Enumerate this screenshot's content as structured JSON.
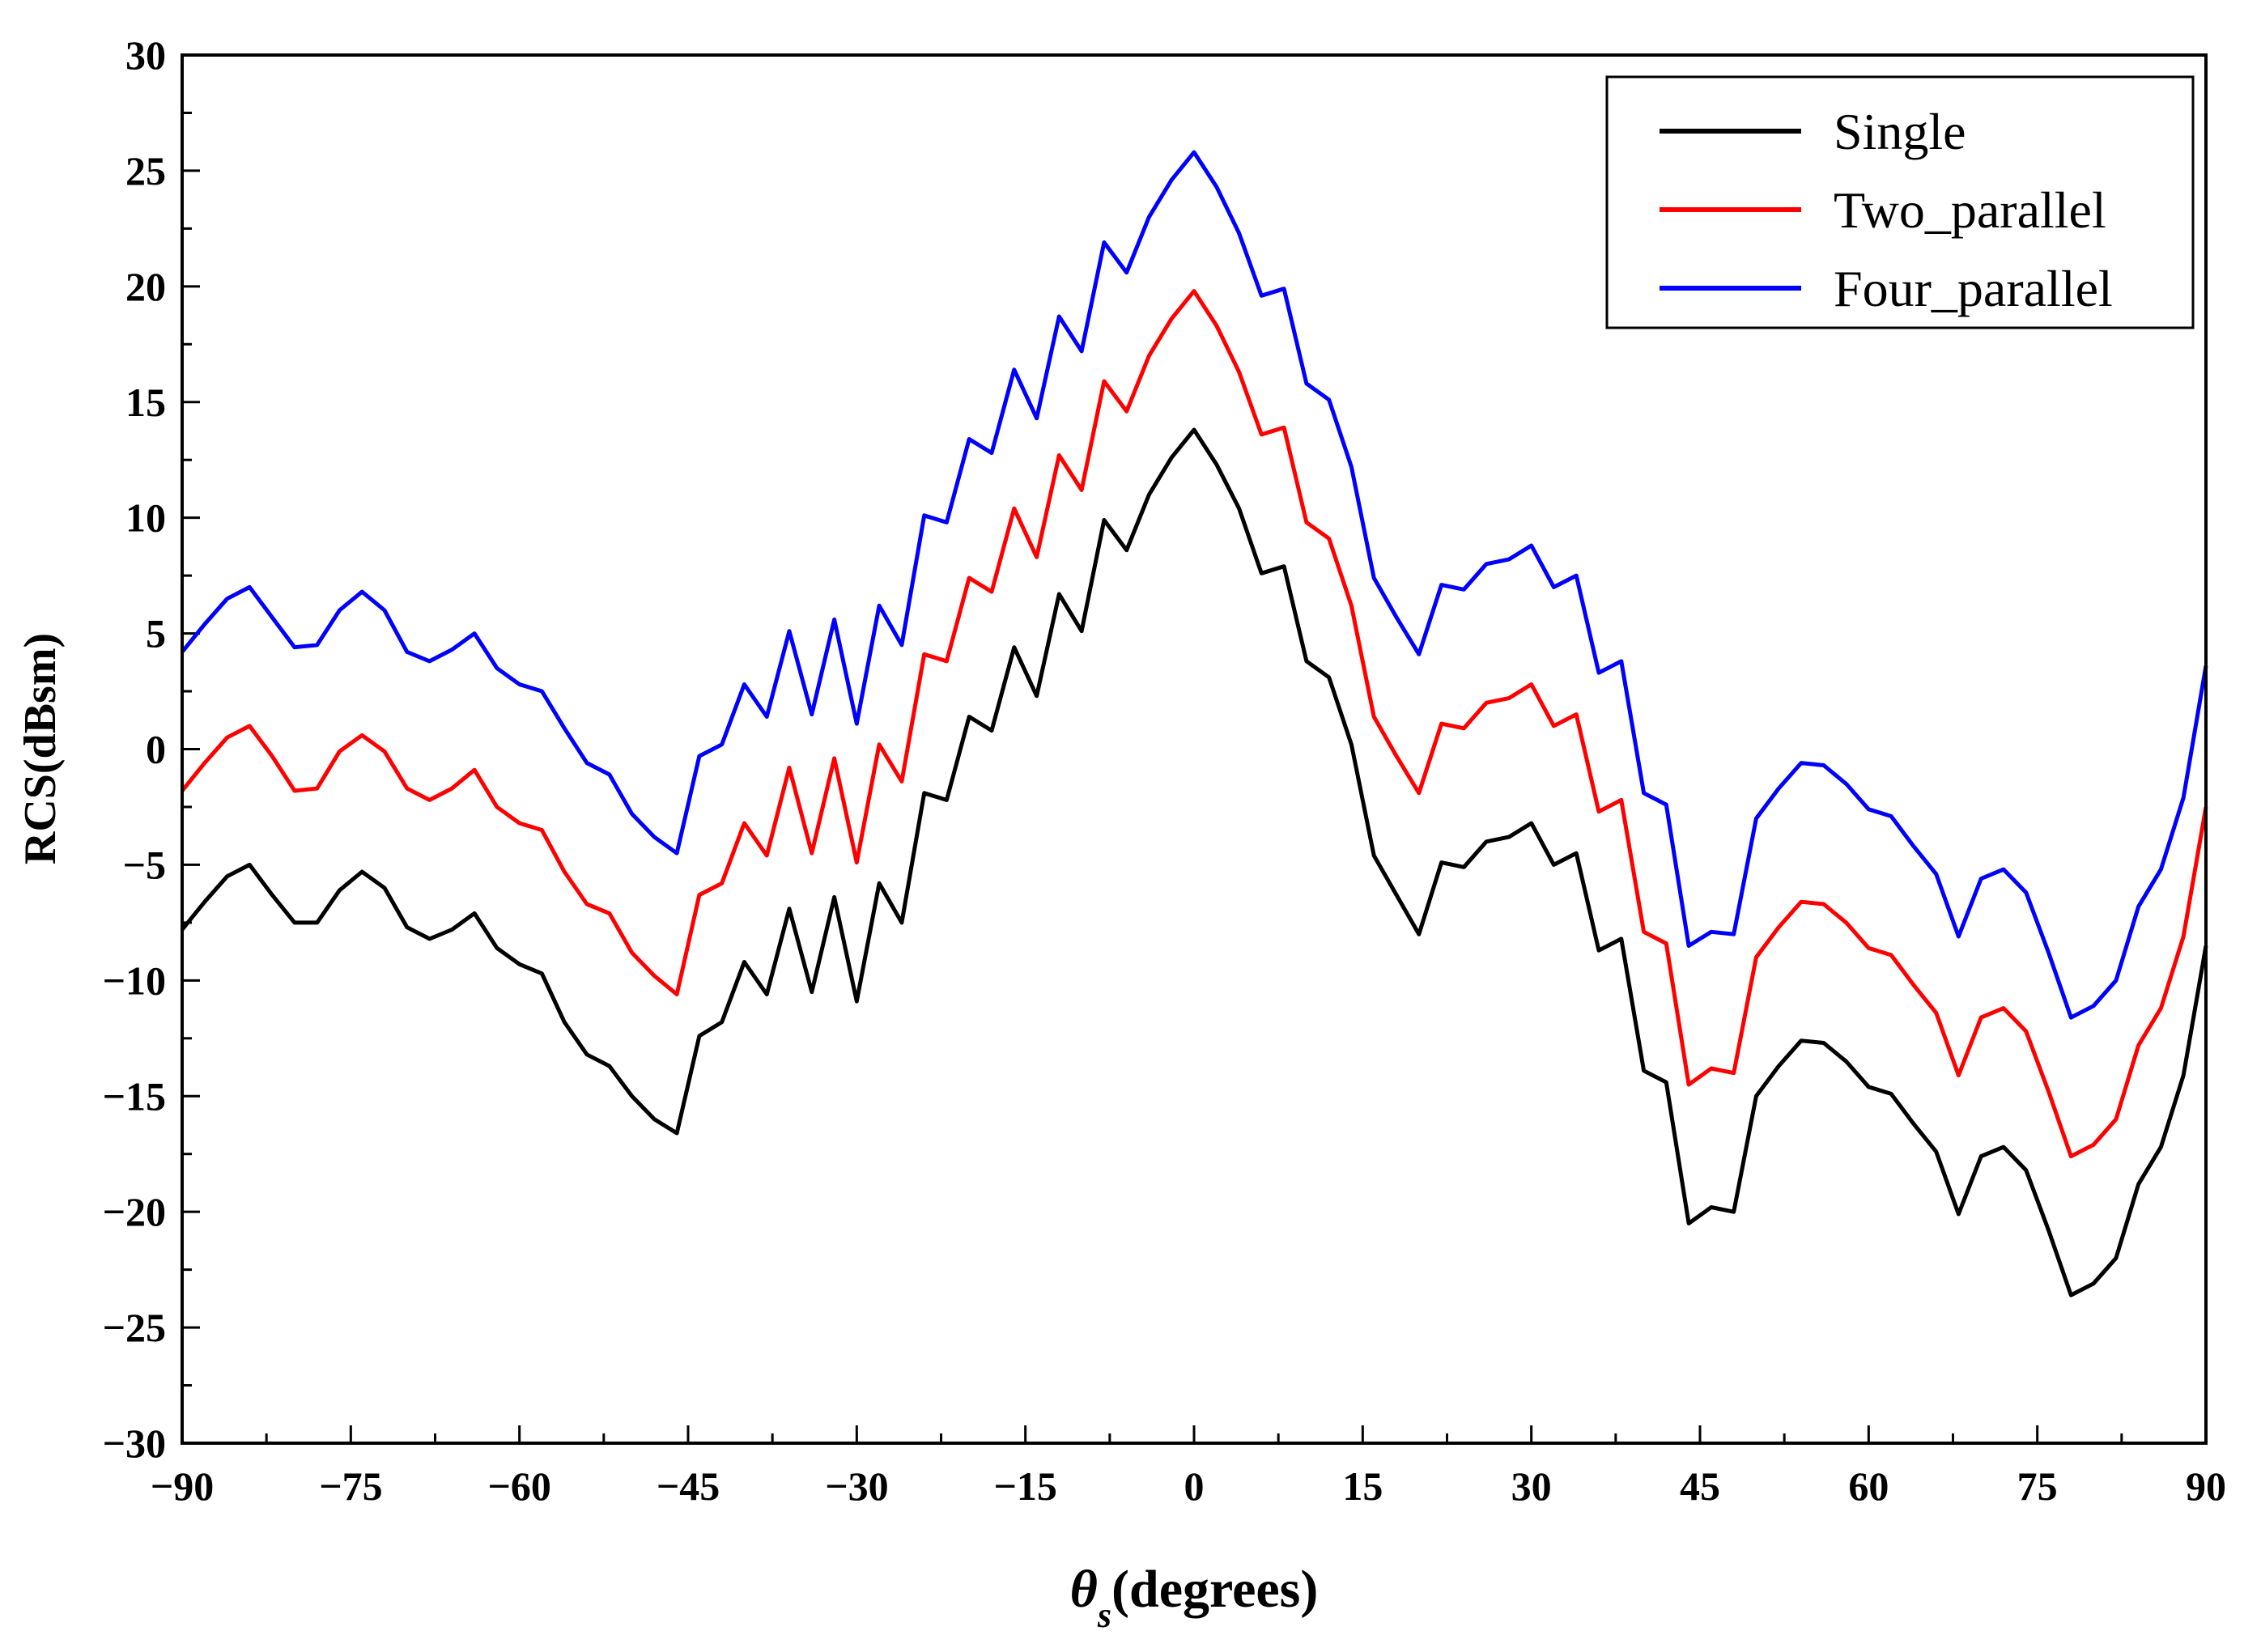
{
  "chart_data": {
    "type": "line",
    "title": "",
    "xlabel_symbol": "θ",
    "xlabel_subscript": "s",
    "xlabel_text": "(degrees)",
    "ylabel": "RCS(dBsm)",
    "xlim": [
      -90,
      90
    ],
    "ylim": [
      -30,
      30
    ],
    "xticks": [
      -90,
      -75,
      -60,
      -45,
      -30,
      -15,
      0,
      15,
      30,
      45,
      60,
      75,
      90
    ],
    "xtick_labels": [
      "−90",
      "−75",
      "−60",
      "−45",
      "−30",
      "−15",
      "0",
      "15",
      "30",
      "45",
      "60",
      "75",
      "90"
    ],
    "yticks": [
      -30,
      -25,
      -20,
      -15,
      -10,
      -5,
      0,
      5,
      10,
      15,
      20,
      25,
      30
    ],
    "ytick_labels": [
      "−30",
      "−25",
      "−20",
      "−15",
      "−10",
      "−5",
      "0",
      "5",
      "10",
      "15",
      "20",
      "25",
      "30"
    ],
    "legend_position": "top-right",
    "x": [
      -90,
      -88,
      -86,
      -84,
      -82,
      -80,
      -78,
      -76,
      -74,
      -72,
      -70,
      -68,
      -66,
      -64,
      -62,
      -60,
      -58,
      -56,
      -54,
      -52,
      -50,
      -48,
      -46,
      -44,
      -42,
      -40,
      -38,
      -36,
      -34,
      -32,
      -30,
      -28,
      -26,
      -24,
      -22,
      -20,
      -18,
      -16,
      -14,
      -12,
      -10,
      -8,
      -6,
      -4,
      -2,
      0,
      2,
      4,
      6,
      8,
      10,
      12,
      14,
      16,
      18,
      20,
      22,
      24,
      26,
      28,
      30,
      32,
      34,
      36,
      38,
      40,
      42,
      44,
      46,
      48,
      50,
      52,
      54,
      56,
      58,
      60,
      62,
      64,
      66,
      68,
      70,
      72,
      74,
      76,
      78,
      80,
      82,
      84,
      86,
      88,
      90
    ],
    "series": [
      {
        "name": "Single",
        "color": "#000000",
        "values": [
          -7.8,
          -6.6,
          -5.5,
          -5.0,
          -6.3,
          -7.5,
          -7.5,
          -6.1,
          -5.3,
          -6.0,
          -7.7,
          -8.2,
          -7.8,
          -7.1,
          -8.6,
          -9.3,
          -9.7,
          -11.8,
          -13.2,
          -13.7,
          -15.0,
          -16.0,
          -16.6,
          -12.4,
          -11.8,
          -9.2,
          -10.6,
          -6.9,
          -10.5,
          -6.4,
          -10.9,
          -5.8,
          -7.5,
          -1.9,
          -2.2,
          1.4,
          0.8,
          4.4,
          2.3,
          6.7,
          5.1,
          9.9,
          8.6,
          11.0,
          12.6,
          13.8,
          12.3,
          10.4,
          7.6,
          7.9,
          3.8,
          3.1,
          0.2,
          -4.6,
          -6.3,
          -8.0,
          -4.9,
          -5.1,
          -4.0,
          -3.8,
          -3.2,
          -5.0,
          -4.5,
          -8.7,
          -8.2,
          -13.9,
          -14.4,
          -20.5,
          -19.8,
          -20.0,
          -15.0,
          -13.7,
          -12.6,
          -12.7,
          -13.5,
          -14.6,
          -14.9,
          -16.2,
          -17.4,
          -20.1,
          -17.6,
          -17.2,
          -18.2,
          -20.8,
          -23.6,
          -23.1,
          -22.0,
          -18.8,
          -17.2,
          -14.1,
          -8.5
        ]
      },
      {
        "name": "Two_parallel",
        "color": "#ff0000",
        "values": [
          -1.8,
          -0.6,
          0.5,
          1.0,
          -0.3,
          -1.8,
          -1.7,
          -0.1,
          0.6,
          -0.1,
          -1.7,
          -2.2,
          -1.7,
          -0.9,
          -2.5,
          -3.2,
          -3.5,
          -5.3,
          -6.7,
          -7.1,
          -8.8,
          -9.8,
          -10.6,
          -6.3,
          -5.8,
          -3.2,
          -4.6,
          -0.8,
          -4.5,
          -0.4,
          -4.9,
          0.2,
          -1.4,
          4.1,
          3.8,
          7.4,
          6.8,
          10.4,
          8.3,
          12.7,
          11.2,
          15.9,
          14.6,
          17.0,
          18.6,
          19.8,
          18.3,
          16.3,
          13.6,
          13.9,
          9.8,
          9.1,
          6.2,
          1.4,
          -0.3,
          -1.9,
          1.1,
          0.9,
          2.0,
          2.2,
          2.8,
          1.0,
          1.5,
          -2.7,
          -2.2,
          -7.9,
          -8.4,
          -14.5,
          -13.8,
          -14.0,
          -9.0,
          -7.7,
          -6.6,
          -6.7,
          -7.5,
          -8.6,
          -8.9,
          -10.2,
          -11.4,
          -14.1,
          -11.6,
          -11.2,
          -12.2,
          -14.8,
          -17.6,
          -17.1,
          -16.0,
          -12.8,
          -11.2,
          -8.1,
          -2.5
        ]
      },
      {
        "name": "Four_parallel",
        "color": "#0000ff",
        "values": [
          4.2,
          5.4,
          6.5,
          7.0,
          5.7,
          4.4,
          4.5,
          6.0,
          6.8,
          6.0,
          4.2,
          3.8,
          4.3,
          5.0,
          3.5,
          2.8,
          2.5,
          0.9,
          -0.6,
          -1.1,
          -2.8,
          -3.8,
          -4.5,
          -0.3,
          0.2,
          2.8,
          1.4,
          5.1,
          1.5,
          5.6,
          1.1,
          6.2,
          4.5,
          10.1,
          9.8,
          13.4,
          12.8,
          16.4,
          14.3,
          18.7,
          17.2,
          21.9,
          20.6,
          23.0,
          24.6,
          25.8,
          24.3,
          22.3,
          19.6,
          19.9,
          15.8,
          15.1,
          12.2,
          7.4,
          5.7,
          4.1,
          7.1,
          6.9,
          8.0,
          8.2,
          8.8,
          7.0,
          7.5,
          3.3,
          3.8,
          -1.9,
          -2.4,
          -8.5,
          -7.9,
          -8.0,
          -3.0,
          -1.7,
          -0.6,
          -0.7,
          -1.5,
          -2.6,
          -2.9,
          -4.2,
          -5.4,
          -8.1,
          -5.6,
          -5.2,
          -6.2,
          -8.8,
          -11.6,
          -11.1,
          -10.0,
          -6.8,
          -5.2,
          -2.1,
          3.6
        ]
      }
    ]
  }
}
